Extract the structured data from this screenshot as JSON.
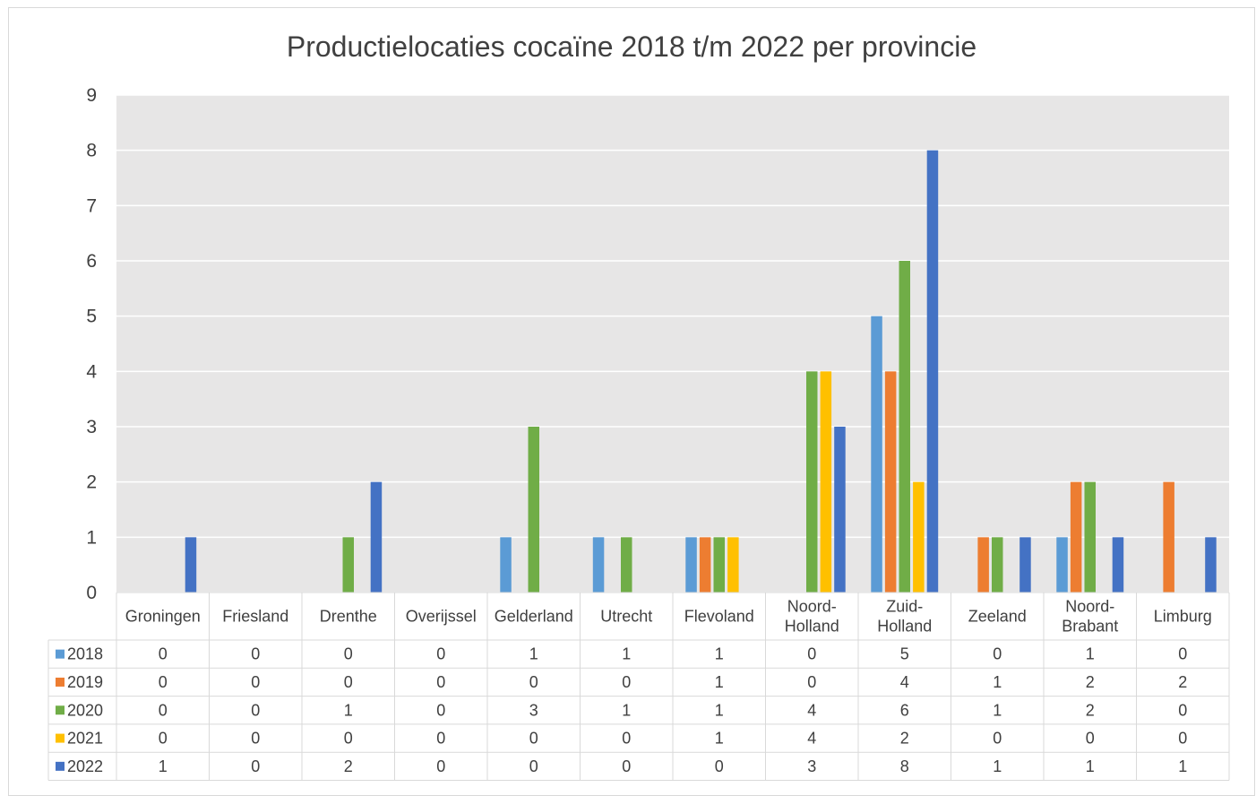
{
  "chart_data": {
    "type": "bar",
    "title": "Productielocaties cocaïne 2018 t/m 2022 per provincie",
    "xlabel": "",
    "ylabel": "",
    "ylim": [
      0,
      9
    ],
    "yticks": [
      0,
      1,
      2,
      3,
      4,
      5,
      6,
      7,
      8,
      9
    ],
    "grid": true,
    "legend": "data-table",
    "categories": [
      [
        "Groningen"
      ],
      [
        "Friesland"
      ],
      [
        "Drenthe"
      ],
      [
        "Overijssel"
      ],
      [
        "Gelderland"
      ],
      [
        "Utrecht"
      ],
      [
        "Flevoland"
      ],
      [
        "Noord-",
        "Holland"
      ],
      [
        "Zuid-",
        "Holland"
      ],
      [
        "Zeeland"
      ],
      [
        "Noord-",
        "Brabant"
      ],
      [
        "Limburg"
      ]
    ],
    "series": [
      {
        "name": "2018",
        "color": "#5b9bd5",
        "values": [
          0,
          0,
          0,
          0,
          1,
          1,
          1,
          0,
          5,
          0,
          1,
          0
        ]
      },
      {
        "name": "2019",
        "color": "#ed7d31",
        "values": [
          0,
          0,
          0,
          0,
          0,
          0,
          1,
          0,
          4,
          1,
          2,
          2
        ]
      },
      {
        "name": "2020",
        "color": "#70ad47",
        "values": [
          0,
          0,
          1,
          0,
          3,
          1,
          1,
          4,
          6,
          1,
          2,
          0
        ]
      },
      {
        "name": "2021",
        "color": "#ffc000",
        "values": [
          0,
          0,
          0,
          0,
          0,
          0,
          1,
          4,
          2,
          0,
          0,
          0
        ]
      },
      {
        "name": "2022",
        "color": "#4472c4",
        "values": [
          1,
          0,
          2,
          0,
          0,
          0,
          0,
          3,
          8,
          1,
          1,
          1
        ]
      }
    ]
  },
  "colors": {
    "plot_background": "#e7e6e6",
    "gridline": "#ffffff",
    "table_border": "#d9d9d9",
    "text": "#404040"
  }
}
